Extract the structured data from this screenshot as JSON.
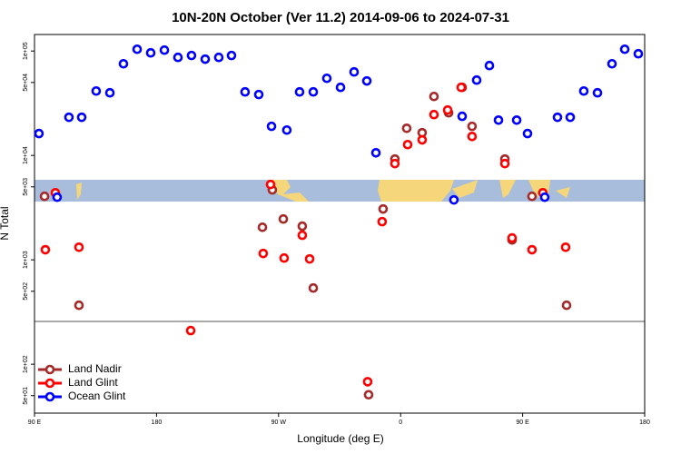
{
  "chart_data": {
    "type": "scatter",
    "title": "10N-20N October (Ver 11.2)   2014-09-06 to 2024-07-31",
    "x_label": "Longitude (deg E)",
    "y_label": "N Total",
    "log_y": true,
    "legend": "bottom-left",
    "xlim": [
      90,
      540
    ],
    "ylim": [
      34,
      144000
    ],
    "xticks": [
      {
        "value": 90,
        "label": "90 E"
      },
      {
        "value": 180,
        "label": "180"
      },
      {
        "value": 270,
        "label": "90 W"
      },
      {
        "value": 360,
        "label": "0"
      },
      {
        "value": 450,
        "label": "90 E"
      },
      {
        "value": 540,
        "label": "180"
      }
    ],
    "yticks": [
      {
        "value": 50,
        "label": "5e+01"
      },
      {
        "value": 100,
        "label": "1e+02"
      },
      {
        "value": 500,
        "label": "5e+02"
      },
      {
        "value": 1000,
        "label": "1e+03"
      },
      {
        "value": 5000,
        "label": "5e+03"
      },
      {
        "value": 10000,
        "label": "1e+04"
      },
      {
        "value": 50000,
        "label": "5e+04"
      },
      {
        "value": 100000,
        "label": "1e+05"
      }
    ],
    "series": [
      {
        "name": "Land Nadir",
        "color": "#a52a2a",
        "x": [
          97.4,
          122.8,
          258.1,
          265.4,
          273.5,
          287.5,
          295.6,
          336.4,
          347.1,
          355.8,
          364.5,
          375.9,
          384.6,
          395.4,
          405.4,
          412.7,
          436.9,
          442.2,
          456.9,
          482.4
        ],
        "values": [
          4060,
          367,
          2050,
          4680,
          2460,
          2100,
          537,
          51,
          3070,
          9230,
          18200,
          16500,
          36700,
          25600,
          44900,
          19000,
          9230,
          1550,
          4060,
          367
        ]
      },
      {
        "name": "Land Glint",
        "color": "#ff0000",
        "x": [
          98.0,
          105.4,
          122.8,
          205.2,
          258.7,
          264.1,
          274.1,
          287.5,
          292.9,
          335.7,
          346.4,
          355.8,
          365.2,
          375.9,
          384.6,
          394.7,
          404.7,
          412.7,
          436.9,
          442.2,
          456.9,
          464.9,
          481.7
        ],
        "values": [
          1250,
          4390,
          1320,
          210,
          1150,
          5270,
          1040,
          1720,
          1020,
          68,
          2320,
          8350,
          12700,
          14100,
          24600,
          27200,
          44900,
          15200,
          8350,
          1620,
          1250,
          4390,
          1320
        ]
      },
      {
        "name": "Ocean Glint",
        "color": "#0000ff",
        "x": [
          93.3,
          106.7,
          115.4,
          124.8,
          135.5,
          145.6,
          155.6,
          165.7,
          175.7,
          185.8,
          195.8,
          205.8,
          215.9,
          225.9,
          235.3,
          245.3,
          255.4,
          264.8,
          276.1,
          285.5,
          295.6,
          305.6,
          315.7,
          325.7,
          335.1,
          341.8,
          399.3,
          405.4,
          416.1,
          425.5,
          432.2,
          445.6,
          453.6,
          466.3,
          475.7,
          485.1,
          495.1,
          505.2,
          515.9,
          525.3,
          535.3
        ],
        "values": [
          16200,
          3980,
          23200,
          23200,
          41400,
          39800,
          75500,
          104000,
          96100,
          102000,
          86900,
          90600,
          83600,
          86900,
          90600,
          40600,
          38300,
          19000,
          17500,
          40600,
          40600,
          54800,
          44900,
          63100,
          51700,
          10600,
          3750,
          23700,
          52700,
          72600,
          21800,
          21800,
          16200,
          3980,
          23200,
          23200,
          41400,
          39800,
          75500,
          104000,
          94200
        ]
      }
    ]
  }
}
